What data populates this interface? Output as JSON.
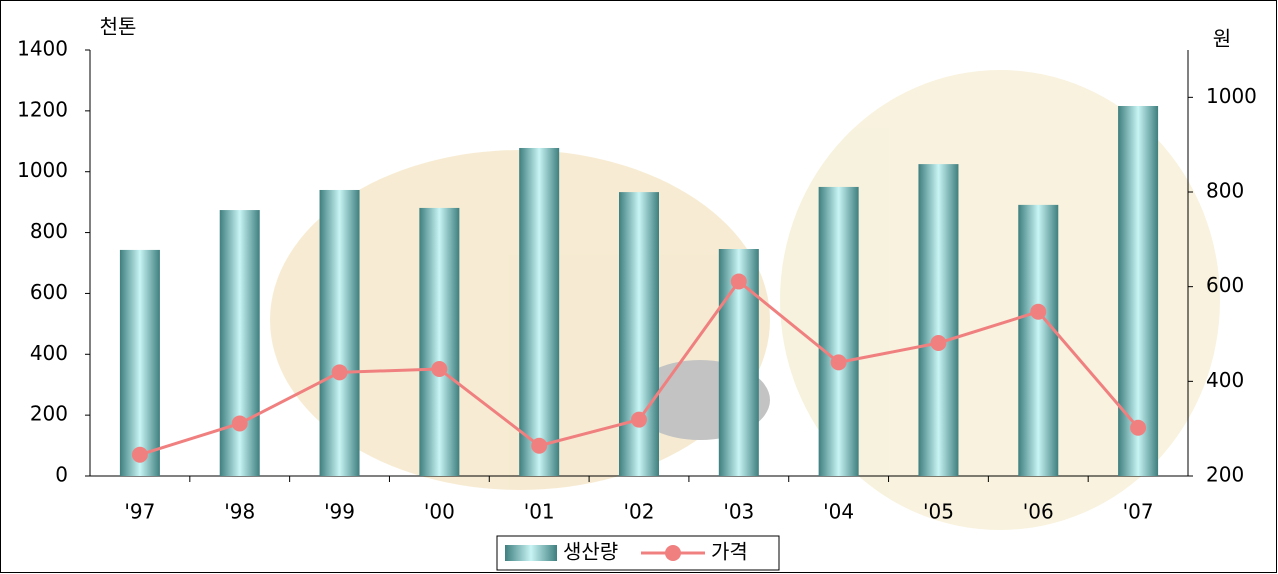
{
  "chart_data": {
    "type": "bar-line",
    "y_unit": "천톤",
    "y2_unit": "원",
    "categories": [
      "'97",
      "'98",
      "'99",
      "'00",
      "'01",
      "'02",
      "'03",
      "'04",
      "'05",
      "'06",
      "'07"
    ],
    "series": [
      {
        "name": "생산량",
        "type": "bar",
        "color": "#7fc4c4",
        "values": [
          743,
          874,
          940,
          881,
          1078,
          933,
          746,
          950,
          1025,
          891,
          1216
        ]
      },
      {
        "name": "가격",
        "type": "line",
        "axis": "y2",
        "color": "#f08080",
        "values": [
          245,
          311,
          419,
          426,
          264,
          319,
          611,
          440,
          481,
          547,
          302
        ]
      }
    ],
    "ylim": [
      0,
      1400
    ],
    "yticks": [
      0,
      200,
      400,
      600,
      800,
      1000,
      1200,
      1400
    ],
    "y2lim": [
      200,
      1100
    ],
    "y2ticks": [
      200,
      400,
      600,
      800,
      1000
    ],
    "legend": "bottom"
  }
}
